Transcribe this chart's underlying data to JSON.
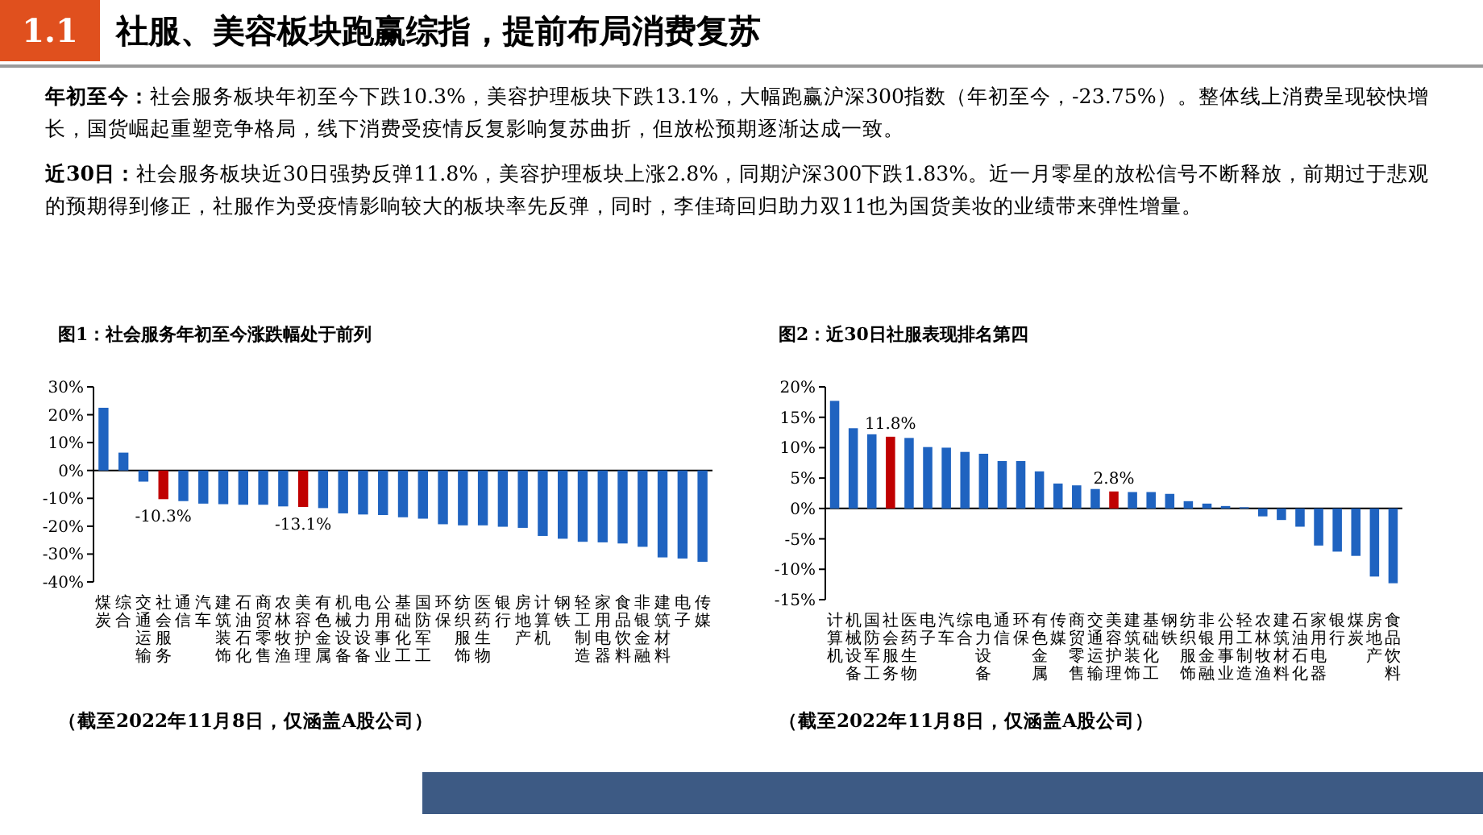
{
  "chart_data": [
    {
      "type": "other",
      "subtitle": "1.1",
      "title": "社服、美容板块跑赢综指，提前布局消费复苏",
      "annotations": [
        "**年初至今：**社会服务板块年初至今下跌10.3%，美容护理板块下跌13.1%，大幅跑赢沪深300指数（年初至今，-23.75%）。整体线上消费呈现较快增长，国货崛起重塑竞争格局，线下消费受疫情反复影响复苏曲折，但放松预期逐渐达成一致。",
        "**近30日：**社会服务板块近30日强势反弹11.8%，美容护理板块上涨2.8%，同期沪深300下跌1.83%。近一月零星的放松信号不断释放，前期过于悲观的预期得到修正，社服作为受疫情影响较大的板块率先反弹，同时，李佳琦回归助力双11也为国货美妆的业绩带来弹性增量。"
      ]
    },
    {
      "type": "bar",
      "title": "图1：社会服务年初至今涨跌幅处于前列",
      "categories": [
        "煤炭",
        "综合",
        "交通运输",
        "社会服务",
        "通信",
        "汽车",
        "建筑装饰",
        "石油石化",
        "商贸零售",
        "农林牧渔",
        "美容护理",
        "有色金属",
        "机械设备",
        "电力设备",
        "公用事业",
        "基础化工",
        "国防军工",
        "环保",
        "纺织服饰",
        "医药生物",
        "银行",
        "房地产",
        "计算机",
        "钢铁",
        "轻工制造",
        "家用电器",
        "食品饮料",
        "非银金融",
        "建筑材料",
        "电子",
        "传媒"
      ],
      "values": [
        22.5,
        6.4,
        -4.0,
        -10.3,
        -11.0,
        -11.9,
        -12.1,
        -12.3,
        -12.3,
        -12.9,
        -13.1,
        -13.5,
        -15.4,
        -15.8,
        -16.0,
        -16.8,
        -17.3,
        -19.3,
        -19.7,
        -19.7,
        -20.2,
        -20.6,
        -23.5,
        -24.5,
        -25.6,
        -25.8,
        -26.2,
        -27.4,
        -31.2,
        -31.6,
        -32.8
      ],
      "colors": [
        "#1f63c0",
        "#1f63c0",
        "#1f63c0",
        "#c00000",
        "#1f63c0",
        "#1f63c0",
        "#1f63c0",
        "#1f63c0",
        "#1f63c0",
        "#1f63c0",
        "#c00000",
        "#1f63c0",
        "#1f63c0",
        "#1f63c0",
        "#1f63c0",
        "#1f63c0",
        "#1f63c0",
        "#1f63c0",
        "#1f63c0",
        "#1f63c0",
        "#1f63c0",
        "#1f63c0",
        "#1f63c0",
        "#1f63c0",
        "#1f63c0",
        "#1f63c0",
        "#1f63c0",
        "#1f63c0",
        "#1f63c0",
        "#1f63c0",
        "#1f63c0"
      ],
      "value_labels": [
        null,
        null,
        null,
        "-10.3%",
        null,
        null,
        null,
        null,
        null,
        null,
        "-13.1%",
        null,
        null,
        null,
        null,
        null,
        null,
        null,
        null,
        null,
        null,
        null,
        null,
        null,
        null,
        null,
        null,
        null,
        null,
        null,
        null
      ],
      "ylim": [
        -40,
        30
      ],
      "yticks": [
        {
          "value": -40,
          "label": "-40%"
        },
        {
          "value": -30,
          "label": "-30%"
        },
        {
          "value": -20,
          "label": "-20%"
        },
        {
          "value": -10,
          "label": "-10%"
        },
        {
          "value": 0,
          "label": "0%"
        },
        {
          "value": 10,
          "label": "10%"
        },
        {
          "value": 20,
          "label": "20%"
        },
        {
          "value": 30,
          "label": "30%"
        }
      ],
      "annotations": [
        "（截至2022年11月8日，仅涵盖A股公司）"
      ]
    },
    {
      "type": "bar",
      "title": "图2：近30日社服表现排名第四",
      "categories": [
        "计算机",
        "机械设备",
        "国防军工",
        "社会服务",
        "医药生物",
        "电子",
        "汽车",
        "综合",
        "电力设备",
        "通信",
        "环保",
        "有色金属",
        "传媒",
        "商贸零售",
        "交通运输",
        "美容护理",
        "建筑装饰",
        "基础化工",
        "钢铁",
        "纺织服饰",
        "非银金融",
        "公用事业",
        "轻工制造",
        "农林牧渔",
        "建筑材料",
        "石油石化",
        "家用电器",
        "银行",
        "煤炭",
        "房地产",
        "食品饮料"
      ],
      "values": [
        17.7,
        13.2,
        12.2,
        11.8,
        11.6,
        10.1,
        10.0,
        9.3,
        9.0,
        7.8,
        7.8,
        6.1,
        4.1,
        3.8,
        3.2,
        2.8,
        2.7,
        2.7,
        2.4,
        1.2,
        0.8,
        0.4,
        0.2,
        -1.3,
        -1.9,
        -3.0,
        -6.1,
        -7.1,
        -7.8,
        -11.2,
        -12.3
      ],
      "colors": [
        "#1f63c0",
        "#1f63c0",
        "#1f63c0",
        "#c00000",
        "#1f63c0",
        "#1f63c0",
        "#1f63c0",
        "#1f63c0",
        "#1f63c0",
        "#1f63c0",
        "#1f63c0",
        "#1f63c0",
        "#1f63c0",
        "#1f63c0",
        "#1f63c0",
        "#c00000",
        "#1f63c0",
        "#1f63c0",
        "#1f63c0",
        "#1f63c0",
        "#1f63c0",
        "#1f63c0",
        "#1f63c0",
        "#1f63c0",
        "#1f63c0",
        "#1f63c0",
        "#1f63c0",
        "#1f63c0",
        "#1f63c0",
        "#1f63c0",
        "#1f63c0"
      ],
      "value_labels": [
        null,
        null,
        null,
        "11.8%",
        null,
        null,
        null,
        null,
        null,
        null,
        null,
        null,
        null,
        null,
        null,
        "2.8%",
        null,
        null,
        null,
        null,
        null,
        null,
        null,
        null,
        null,
        null,
        null,
        null,
        null,
        null,
        null
      ],
      "ylim": [
        -15,
        20
      ],
      "yticks": [
        {
          "value": -15,
          "label": "-15%"
        },
        {
          "value": -10,
          "label": "-10%"
        },
        {
          "value": -5,
          "label": "-5%"
        },
        {
          "value": 0,
          "label": "0%"
        },
        {
          "value": 5,
          "label": "5%"
        },
        {
          "value": 10,
          "label": "10%"
        },
        {
          "value": 15,
          "label": "15%"
        },
        {
          "value": 20,
          "label": "20%"
        }
      ],
      "annotations": [
        "（截至2022年11月8日，仅涵盖A股公司）"
      ]
    }
  ]
}
